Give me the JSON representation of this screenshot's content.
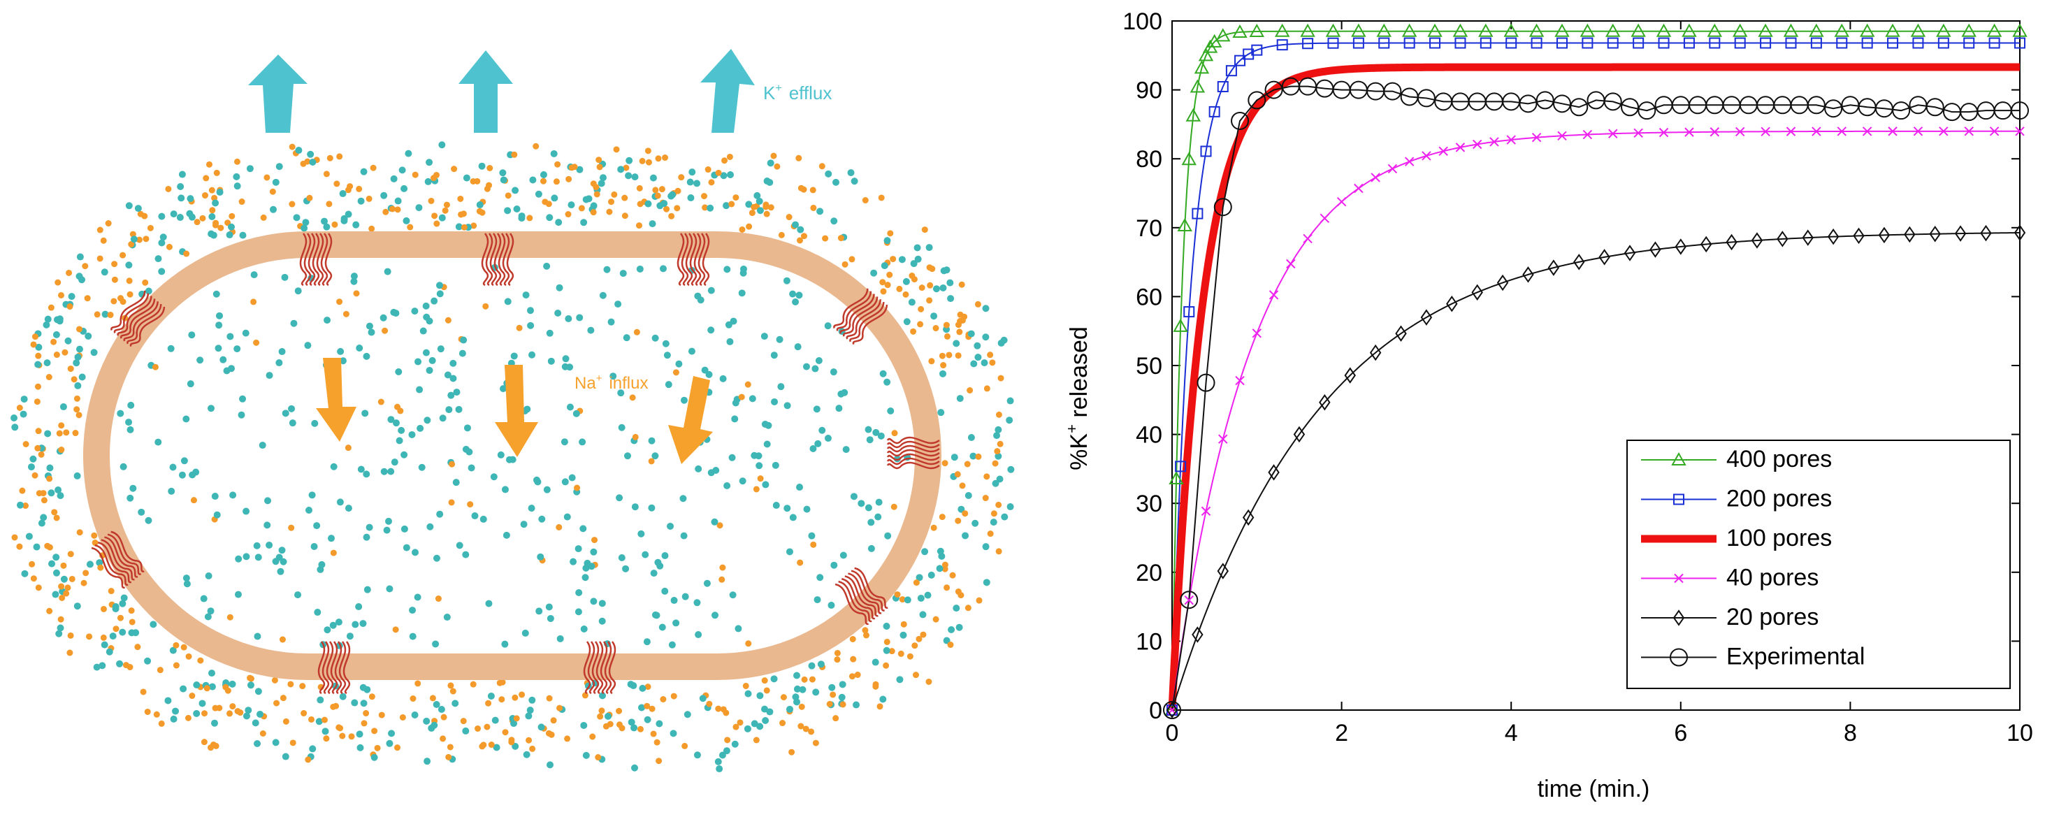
{
  "diagram": {
    "efflux_label_main": "K",
    "efflux_label_sup": "+",
    "efflux_label_rest": "efflux",
    "influx_label_main": "Na",
    "influx_label_sup": "+",
    "influx_label_rest": "influx",
    "colors": {
      "membrane": "#e9b88f",
      "k_ion": "#3fb6b6",
      "na_ion": "#f39a2b",
      "efflux_arrow": "#4ec3cf",
      "influx_arrow": "#f6a12c",
      "pore": "#c0392b"
    }
  },
  "chart_data": {
    "type": "line",
    "xlabel": "time (min.)",
    "ylabel_main": "%K",
    "ylabel_sup": "+",
    "ylabel_rest": " released",
    "xlim": [
      0,
      10
    ],
    "ylim": [
      0,
      100
    ],
    "xticks": [
      0,
      2,
      4,
      6,
      8,
      10
    ],
    "yticks": [
      0,
      10,
      20,
      30,
      40,
      50,
      60,
      70,
      80,
      90,
      100
    ],
    "legend_position": "lower-right",
    "series": [
      {
        "name": "400 pores",
        "color": "#33aa22",
        "marker": "triangle",
        "plateau": 98.5,
        "tau": 0.12,
        "marker_times": [
          0,
          0.05,
          0.1,
          0.15,
          0.2,
          0.25,
          0.3,
          0.35,
          0.4,
          0.45,
          0.5,
          0.6,
          0.8,
          1,
          1.3,
          1.6,
          1.9,
          2.2,
          2.5,
          2.8,
          3.1,
          3.4,
          3.7,
          4,
          4.3,
          4.6,
          4.9,
          5.2,
          5.5,
          5.8,
          6.1,
          6.4,
          6.7,
          7,
          7.3,
          7.6,
          7.9,
          8.2,
          8.5,
          8.8,
          9.1,
          9.4,
          9.7,
          10
        ]
      },
      {
        "name": "200 pores",
        "color": "#1a2fd6",
        "marker": "square",
        "plateau": 96.8,
        "tau": 0.22,
        "marker_times": [
          0,
          0.1,
          0.2,
          0.3,
          0.4,
          0.5,
          0.6,
          0.7,
          0.8,
          0.9,
          1,
          1.3,
          1.6,
          1.9,
          2.2,
          2.5,
          2.8,
          3.1,
          3.4,
          3.7,
          4,
          4.3,
          4.6,
          4.9,
          5.2,
          5.5,
          5.8,
          6.1,
          6.4,
          6.7,
          7,
          7.3,
          7.6,
          7.9,
          8.2,
          8.5,
          8.8,
          9.1,
          9.4,
          9.7,
          10
        ]
      },
      {
        "name": "100 pores",
        "color": "#ee1111",
        "marker": "none",
        "plateau": 93.3,
        "tau": 0.36,
        "marker_times": []
      },
      {
        "name": "40 pores",
        "color": "#ee22ee",
        "marker": "x",
        "plateau": 84,
        "tau": 0.95,
        "marker_times": [
          0,
          0.2,
          0.4,
          0.6,
          0.8,
          1,
          1.2,
          1.4,
          1.6,
          1.8,
          2,
          2.2,
          2.4,
          2.6,
          2.8,
          3,
          3.2,
          3.4,
          3.6,
          3.8,
          4,
          4.3,
          4.6,
          4.9,
          5.2,
          5.5,
          5.8,
          6.1,
          6.4,
          6.7,
          7,
          7.3,
          7.6,
          7.9,
          8.2,
          8.5,
          8.8,
          9.1,
          9.4,
          9.7,
          10
        ]
      },
      {
        "name": "20 pores",
        "color": "#111111",
        "marker": "diamond",
        "plateau": 69.5,
        "tau": 1.75,
        "marker_times": [
          0,
          0.3,
          0.6,
          0.9,
          1.2,
          1.5,
          1.8,
          2.1,
          2.4,
          2.7,
          3,
          3.3,
          3.6,
          3.9,
          4.2,
          4.5,
          4.8,
          5.1,
          5.4,
          5.7,
          6,
          6.3,
          6.6,
          6.9,
          7.2,
          7.5,
          7.8,
          8.1,
          8.4,
          8.7,
          9,
          9.3,
          9.6,
          10
        ]
      },
      {
        "name": "Experimental",
        "color": "#111111",
        "marker": "circle",
        "x": [
          0,
          0.2,
          0.4,
          0.6,
          0.8,
          1.0,
          1.2,
          1.4,
          1.6,
          1.8,
          2.0,
          2.2,
          2.4,
          2.6,
          2.8,
          3.0,
          3.2,
          3.4,
          3.6,
          3.8,
          4.0,
          4.2,
          4.4,
          4.6,
          4.8,
          5.0,
          5.2,
          5.4,
          5.6,
          5.8,
          6.0,
          6.2,
          6.4,
          6.6,
          6.8,
          7.0,
          7.2,
          7.4,
          7.6,
          7.8,
          8.0,
          8.2,
          8.4,
          8.6,
          8.8,
          9.0,
          9.2,
          9.4,
          9.6,
          9.8,
          10.0
        ],
        "y": [
          0,
          16,
          47.5,
          73,
          85.5,
          88.5,
          90,
          90.5,
          90.5,
          90.2,
          90,
          90,
          89.8,
          89.8,
          89,
          88.8,
          88.3,
          88.3,
          88.3,
          88.3,
          88.3,
          88,
          88.5,
          88,
          87.5,
          88.5,
          88.3,
          87.5,
          87,
          87.8,
          87.8,
          87.8,
          87.8,
          87.8,
          87.8,
          87.8,
          87.8,
          87.8,
          87.8,
          87.3,
          87.8,
          87.5,
          87.3,
          87,
          87.8,
          87.5,
          86.8,
          86.8,
          87,
          87,
          87
        ]
      }
    ]
  }
}
